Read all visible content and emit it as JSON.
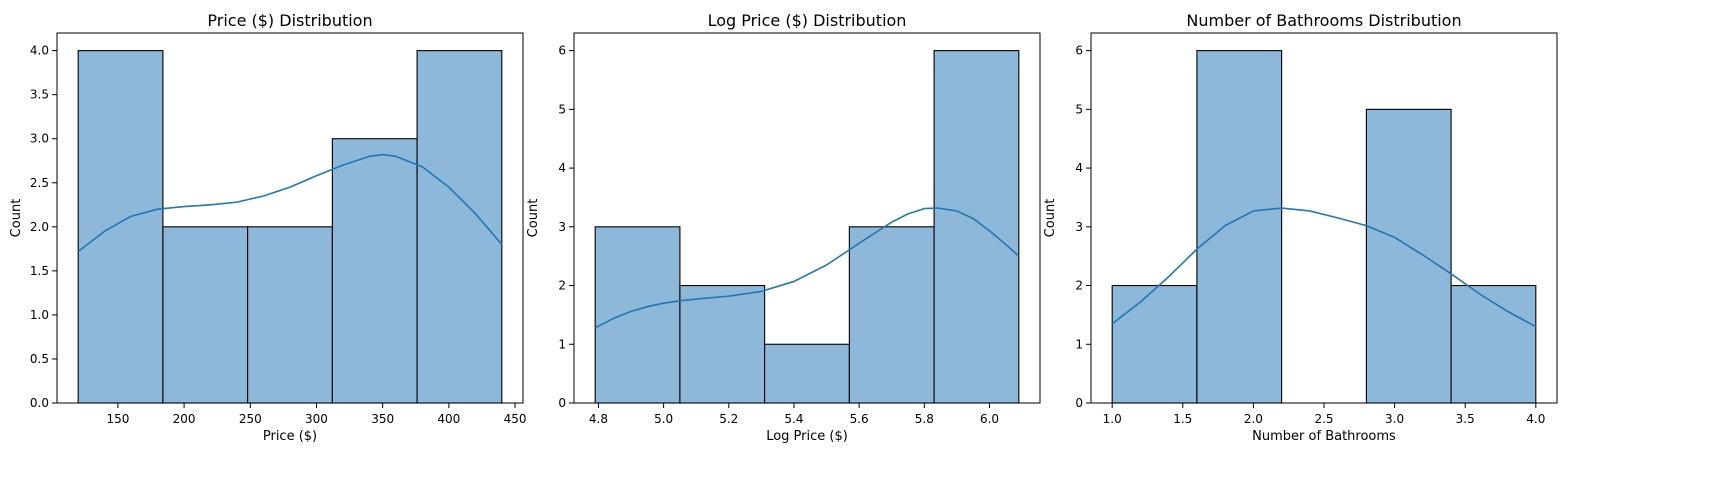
{
  "chart_data": [
    {
      "type": "histogram",
      "title": "Price ($) Distribution",
      "xlabel": "Price ($)",
      "ylabel": "Count",
      "xlim": [
        104,
        456
      ],
      "ylim": [
        0,
        4.2
      ],
      "xticks": [
        150,
        200,
        250,
        300,
        350,
        400,
        450
      ],
      "yticks": [
        0.0,
        0.5,
        1.0,
        1.5,
        2.0,
        2.5,
        3.0,
        3.5,
        4.0
      ],
      "ytick_decimals": 1,
      "bins": [
        {
          "start": 120,
          "end": 184,
          "count": 4
        },
        {
          "start": 184,
          "end": 248,
          "count": 2
        },
        {
          "start": 248,
          "end": 312,
          "count": 2
        },
        {
          "start": 312,
          "end": 376,
          "count": 3
        },
        {
          "start": 376,
          "end": 440,
          "count": 4
        }
      ],
      "kde": {
        "x": [
          120,
          140,
          160,
          180,
          200,
          220,
          240,
          260,
          280,
          300,
          320,
          340,
          350,
          360,
          380,
          400,
          420,
          440
        ],
        "y": [
          1.72,
          1.95,
          2.12,
          2.2,
          2.23,
          2.25,
          2.28,
          2.35,
          2.45,
          2.58,
          2.7,
          2.8,
          2.82,
          2.8,
          2.68,
          2.45,
          2.15,
          1.8
        ]
      }
    },
    {
      "type": "histogram",
      "title": "Log Price ($) Distribution",
      "xlabel": "Log Price ($)",
      "ylabel": "Count",
      "xlim": [
        4.725,
        6.155
      ],
      "ylim": [
        0,
        6.3
      ],
      "xticks": [
        4.8,
        5.0,
        5.2,
        5.4,
        5.6,
        5.8,
        6.0
      ],
      "yticks": [
        0,
        1,
        2,
        3,
        4,
        5,
        6
      ],
      "ytick_decimals": 0,
      "bins": [
        {
          "start": 4.79,
          "end": 5.05,
          "count": 3
        },
        {
          "start": 5.05,
          "end": 5.31,
          "count": 2
        },
        {
          "start": 5.31,
          "end": 5.57,
          "count": 1
        },
        {
          "start": 5.57,
          "end": 5.83,
          "count": 3
        },
        {
          "start": 5.83,
          "end": 6.09,
          "count": 6
        }
      ],
      "kde": {
        "x": [
          4.79,
          4.85,
          4.9,
          4.95,
          5.0,
          5.05,
          5.1,
          5.2,
          5.3,
          5.4,
          5.5,
          5.6,
          5.7,
          5.75,
          5.8,
          5.84,
          5.9,
          5.95,
          6.0,
          6.05,
          6.09
        ],
        "y": [
          1.28,
          1.45,
          1.56,
          1.64,
          1.7,
          1.74,
          1.77,
          1.82,
          1.9,
          2.07,
          2.35,
          2.72,
          3.08,
          3.22,
          3.31,
          3.32,
          3.27,
          3.14,
          2.93,
          2.7,
          2.5
        ]
      }
    },
    {
      "type": "histogram",
      "title": "Number of Bathrooms Distribution",
      "xlabel": "Number of Bathrooms",
      "ylabel": "Count",
      "xlim": [
        0.85,
        4.15
      ],
      "ylim": [
        0,
        6.3
      ],
      "xticks": [
        1.0,
        1.5,
        2.0,
        2.5,
        3.0,
        3.5,
        4.0
      ],
      "yticks": [
        0,
        1,
        2,
        3,
        4,
        5,
        6
      ],
      "ytick_decimals": 0,
      "bins": [
        {
          "start": 1.0,
          "end": 1.6,
          "count": 2
        },
        {
          "start": 1.6,
          "end": 2.2,
          "count": 6
        },
        {
          "start": 2.2,
          "end": 2.8,
          "count": 0
        },
        {
          "start": 2.8,
          "end": 3.4,
          "count": 5
        },
        {
          "start": 3.4,
          "end": 4.0,
          "count": 2
        }
      ],
      "kde": {
        "x": [
          1.0,
          1.2,
          1.4,
          1.6,
          1.8,
          2.0,
          2.2,
          2.4,
          2.6,
          2.8,
          3.0,
          3.2,
          3.4,
          3.6,
          3.8,
          4.0
        ],
        "y": [
          1.35,
          1.72,
          2.15,
          2.62,
          3.02,
          3.27,
          3.32,
          3.27,
          3.15,
          3.02,
          2.82,
          2.52,
          2.2,
          1.86,
          1.56,
          1.3
        ]
      }
    }
  ],
  "colors": {
    "bar_fill": "#8db8da",
    "bar_edge": "#000000",
    "kde_line": "#1f77b4",
    "axis": "#000000",
    "background": "#ffffff"
  }
}
